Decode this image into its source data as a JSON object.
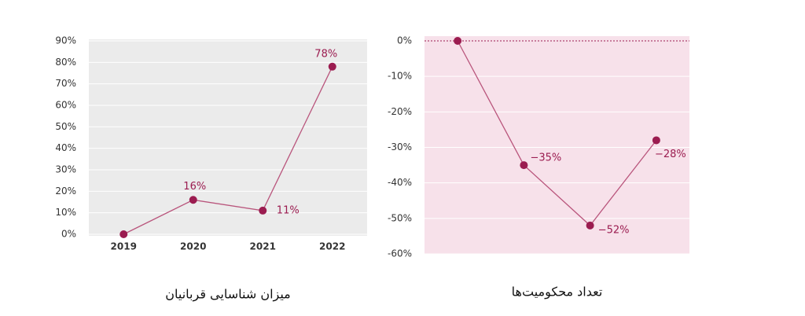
{
  "chart_data": [
    {
      "type": "line",
      "title": "میزان شناسایی قربانیان",
      "categories": [
        "2019",
        "2020",
        "2021",
        "2022"
      ],
      "series": [
        {
          "color": "#9b1c50",
          "values": [
            0,
            16,
            11,
            78
          ],
          "value_labels": [
            null,
            "16%",
            "11%",
            "78%"
          ]
        }
      ],
      "ylim": [
        0,
        90
      ],
      "yticks": [
        {
          "value": 0,
          "label": "0%"
        },
        {
          "value": 10,
          "label": "10%"
        },
        {
          "value": 20,
          "label": "20%"
        },
        {
          "value": 30,
          "label": "30%"
        },
        {
          "value": 40,
          "label": "40%"
        },
        {
          "value": 50,
          "label": "50%"
        },
        {
          "value": 60,
          "label": "60%"
        },
        {
          "value": 70,
          "label": "70%"
        },
        {
          "value": 80,
          "label": "80%"
        },
        {
          "value": 90,
          "label": "90%"
        }
      ],
      "grid": true,
      "background": "#ebebeb"
    },
    {
      "type": "line",
      "title": "تعداد محکومیت‌ها",
      "categories": [
        null,
        null,
        null,
        null
      ],
      "series": [
        {
          "color": "#9b1c50",
          "values": [
            0,
            -35,
            -52,
            -28
          ],
          "value_labels": [
            null,
            "−35%",
            "−52%",
            "−28%"
          ]
        }
      ],
      "ylim": [
        -60,
        0
      ],
      "yticks": [
        {
          "value": -60,
          "label": "-60%"
        },
        {
          "value": -50,
          "label": "-50%"
        },
        {
          "value": -40,
          "label": "-40%"
        },
        {
          "value": -30,
          "label": "-30%"
        },
        {
          "value": -20,
          "label": "-20%"
        },
        {
          "value": -10,
          "label": "-10%"
        },
        {
          "value": 0,
          "label": "0%"
        }
      ],
      "grid": true,
      "background": "#f7e1ea"
    }
  ]
}
